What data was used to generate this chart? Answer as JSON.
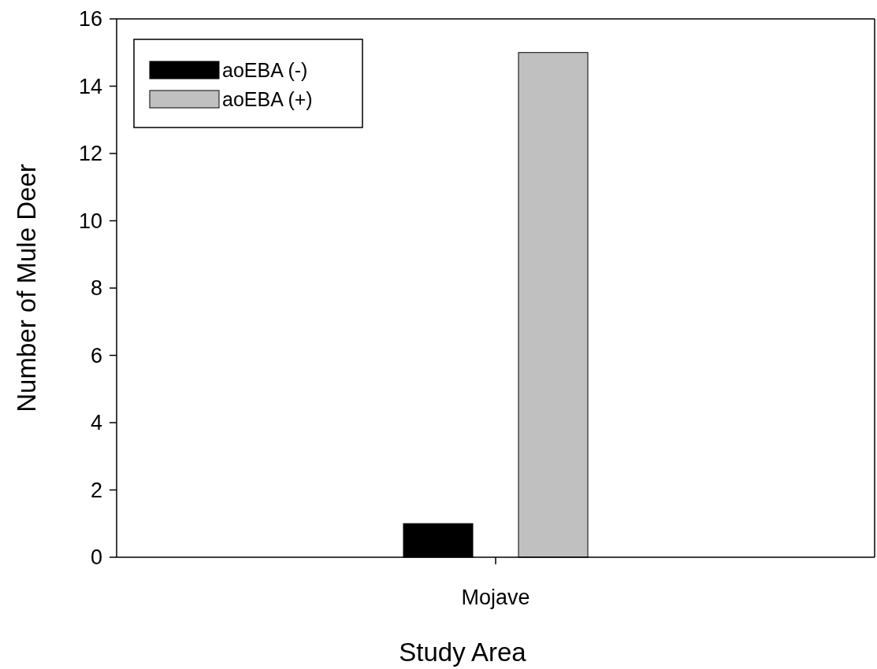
{
  "chart_data": {
    "type": "bar",
    "xlabel": "Study Area",
    "ylabel": "Number of Mule Deer",
    "categories": [
      "Mojave"
    ],
    "series": [
      {
        "name": "aoEBA (-)",
        "color": "#000000",
        "values": [
          1
        ]
      },
      {
        "name": "aoEBA (+)",
        "color": "#c0c0c0",
        "values": [
          15
        ]
      }
    ],
    "ylim": [
      0,
      16
    ],
    "yticks": [
      0,
      2,
      4,
      6,
      8,
      10,
      12,
      14,
      16
    ],
    "legend": "top left",
    "grid": false
  }
}
